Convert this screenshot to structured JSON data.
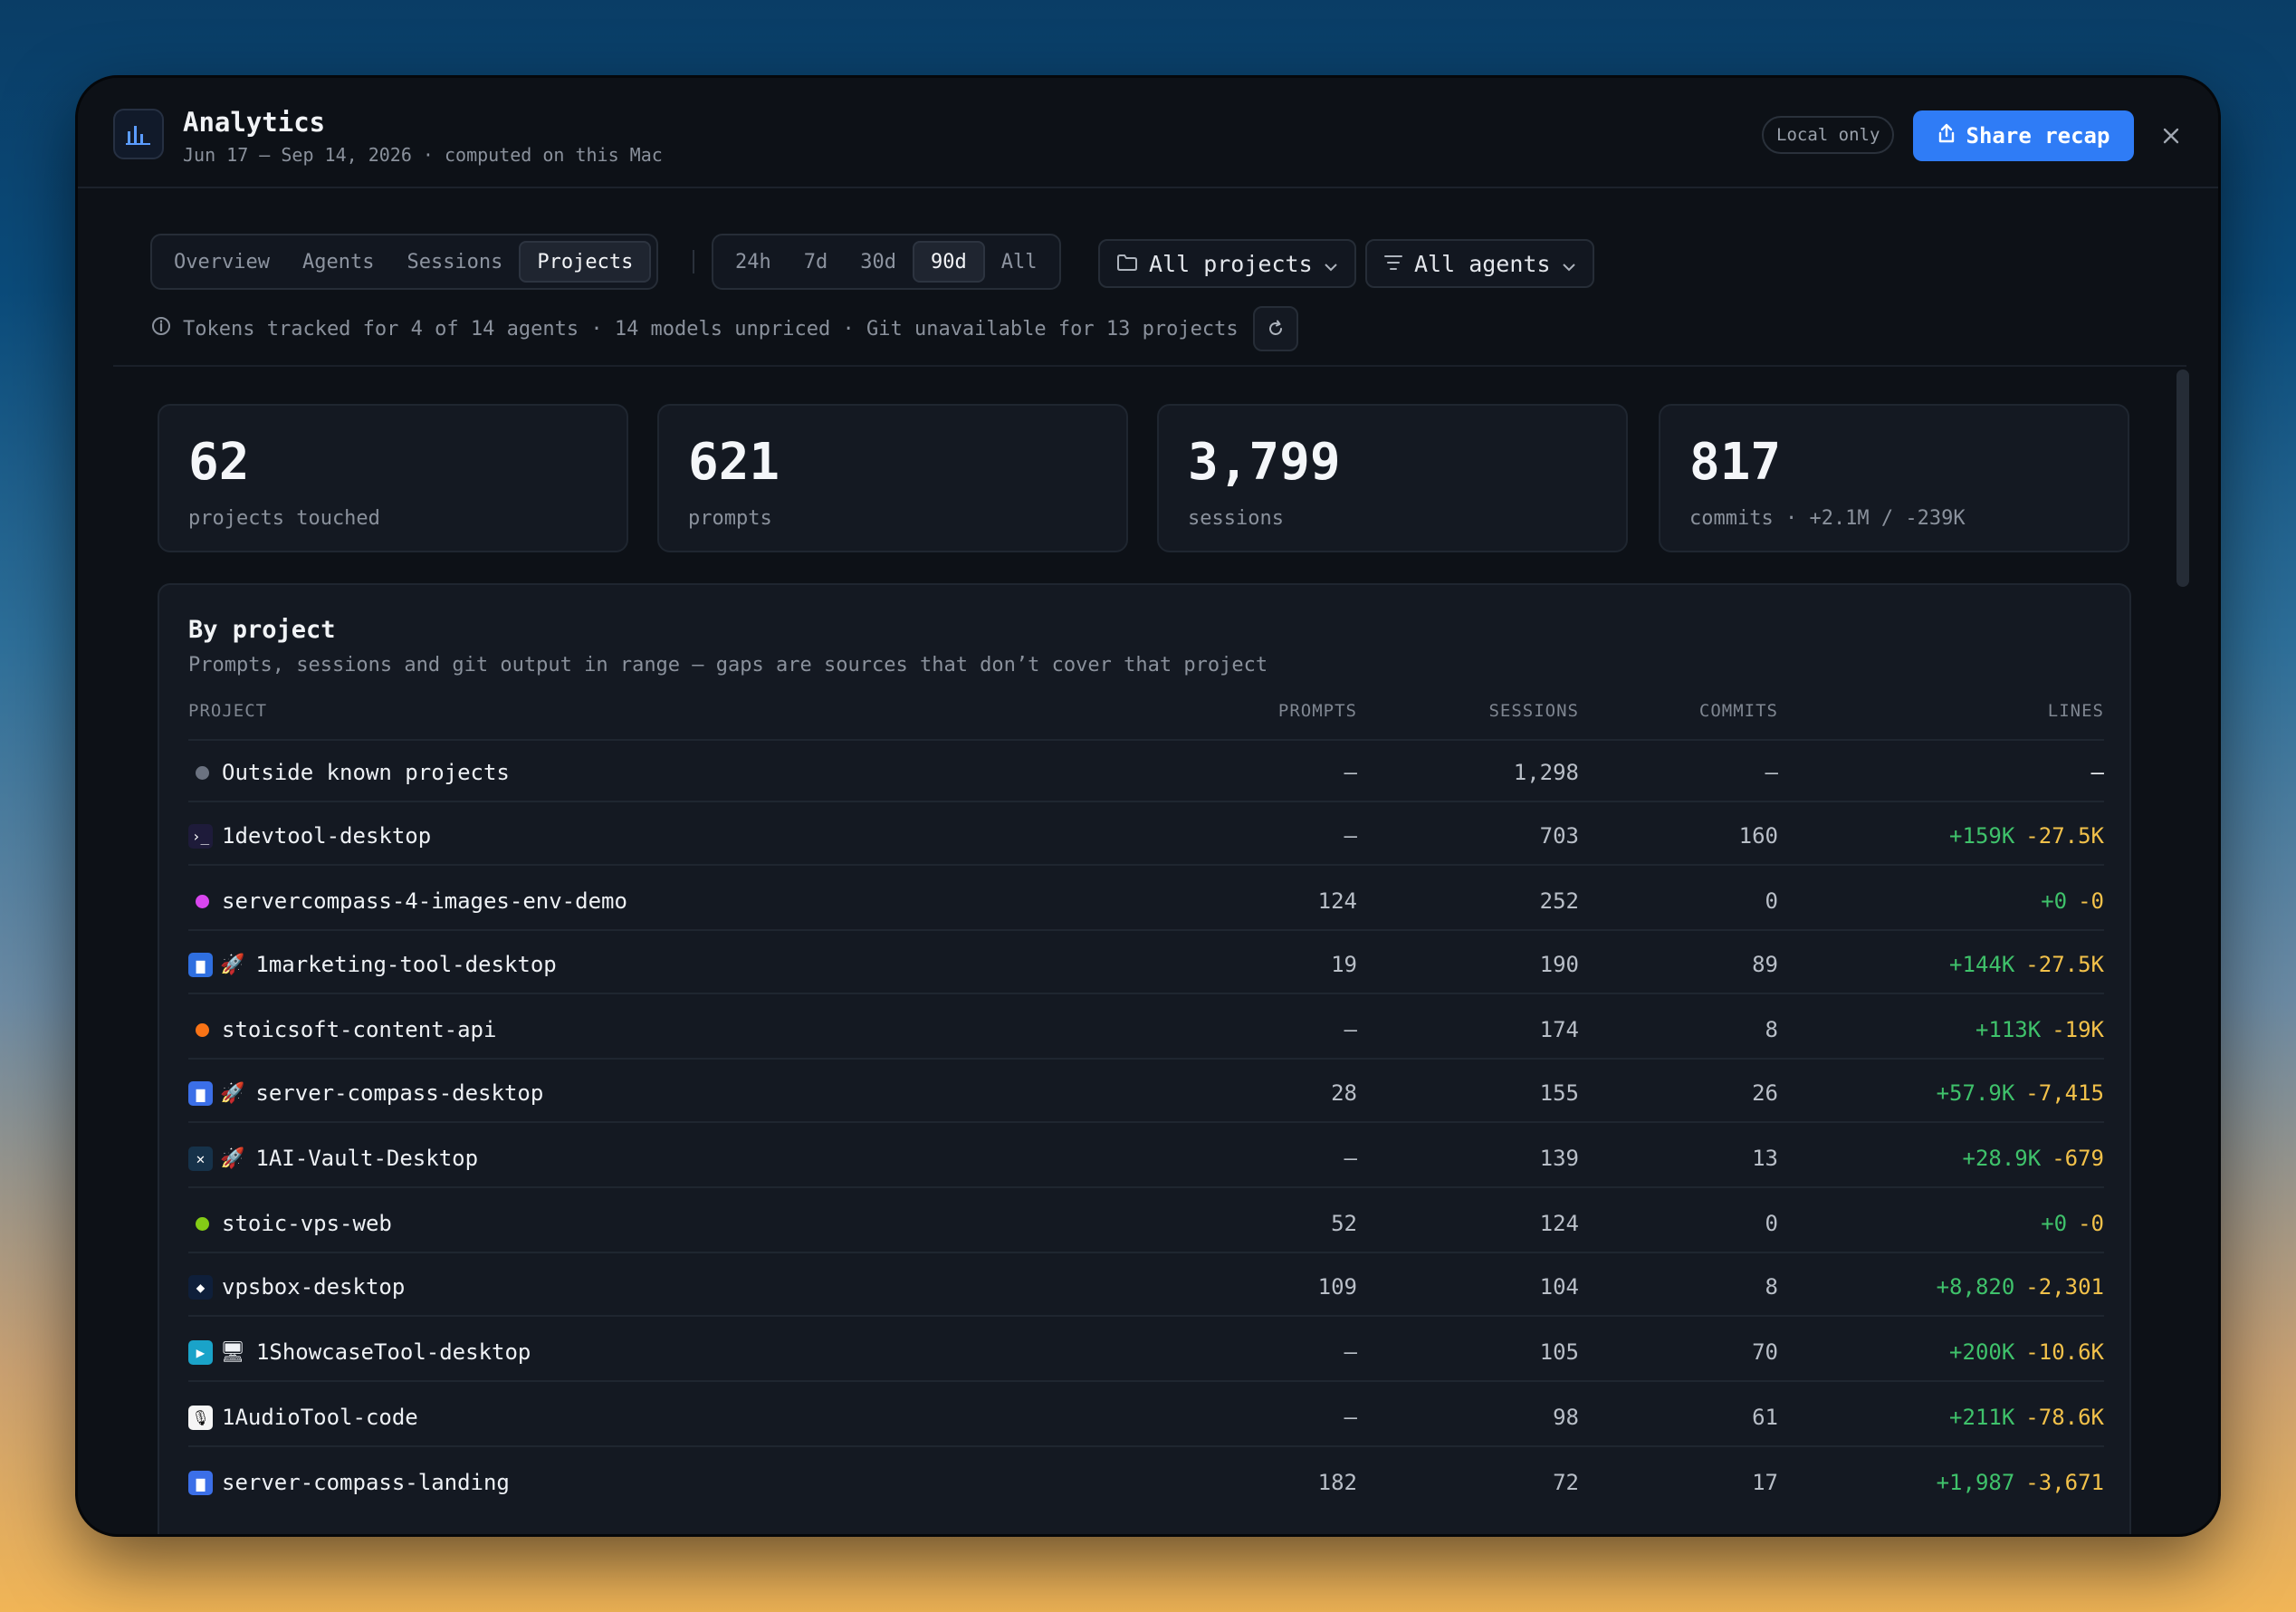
{
  "header": {
    "title": "Analytics",
    "subtitle": "Jun 17 – Sep 14, 2026 · computed on this Mac",
    "local_badge": "Local only",
    "share_label": "Share recap",
    "close_icon": "close-icon",
    "app_icon": "bar-chart-icon"
  },
  "tabs": [
    {
      "label": "Overview",
      "active": false
    },
    {
      "label": "Agents",
      "active": false
    },
    {
      "label": "Sessions",
      "active": false
    },
    {
      "label": "Projects",
      "active": true
    }
  ],
  "ranges": [
    {
      "label": "24h",
      "active": false
    },
    {
      "label": "7d",
      "active": false
    },
    {
      "label": "30d",
      "active": false
    },
    {
      "label": "90d",
      "active": true
    },
    {
      "label": "All",
      "active": false
    }
  ],
  "filters": {
    "projects_label": "All projects",
    "agents_label": "All agents"
  },
  "info": {
    "text": "Tokens tracked for 4 of 14 agents · 14 models unpriced · Git unavailable for 13 projects"
  },
  "stats": [
    {
      "value": "62",
      "label": "projects touched"
    },
    {
      "value": "621",
      "label": "prompts"
    },
    {
      "value": "3,799",
      "label": "sessions"
    },
    {
      "value": "817",
      "label": "commits · +2.1M / -239K"
    }
  ],
  "by_project": {
    "title": "By project",
    "subtitle": "Prompts, sessions and git output in range — gaps are sources that don’t cover that project",
    "columns": {
      "project": "PROJECT",
      "prompts": "PROMPTS",
      "sessions": "SESSIONS",
      "commits": "COMMITS",
      "lines": "LINES"
    },
    "rows": [
      {
        "name": "Outside known projects",
        "icon": "dot",
        "color": "#6b7280",
        "prompts": "—",
        "sessions": "1,298",
        "commits": "—",
        "added": "",
        "removed": "",
        "lines_text": "—"
      },
      {
        "name": "1devtool-desktop",
        "icon": "terminal-icon",
        "color": "#1e1b3a",
        "prompts": "—",
        "sessions": "703",
        "commits": "160",
        "added": "+159K",
        "removed": "-27.5K"
      },
      {
        "name": "servercompass-4-images-env-demo",
        "icon": "dot",
        "color": "#d946ef",
        "prompts": "124",
        "sessions": "252",
        "commits": "0",
        "added": "+0",
        "removed": "-0"
      },
      {
        "name": "1marketing-tool-desktop",
        "icon": "app-icon",
        "color": "#2f6fe0",
        "rocket": true,
        "prompts": "19",
        "sessions": "190",
        "commits": "89",
        "added": "+144K",
        "removed": "-27.5K"
      },
      {
        "name": "stoicsoft-content-api",
        "icon": "dot",
        "color": "#f97316",
        "prompts": "—",
        "sessions": "174",
        "commits": "8",
        "added": "+113K",
        "removed": "-19K"
      },
      {
        "name": "server-compass-desktop",
        "icon": "app-icon",
        "color": "#3b6fe8",
        "rocket": true,
        "prompts": "28",
        "sessions": "155",
        "commits": "26",
        "added": "+57.9K",
        "removed": "-7,415"
      },
      {
        "name": "1AI-Vault-Desktop",
        "icon": "network-icon",
        "color": "#16324a",
        "rocket": true,
        "prompts": "—",
        "sessions": "139",
        "commits": "13",
        "added": "+28.9K",
        "removed": "-679"
      },
      {
        "name": "stoic-vps-web",
        "icon": "dot",
        "color": "#84cc16",
        "prompts": "52",
        "sessions": "124",
        "commits": "0",
        "added": "+0",
        "removed": "-0"
      },
      {
        "name": "vpsbox-desktop",
        "icon": "cube-icon",
        "color": "#0f1f3a",
        "prompts": "109",
        "sessions": "104",
        "commits": "8",
        "added": "+8,820",
        "removed": "-2,301"
      },
      {
        "name": "1ShowcaseTool-desktop",
        "icon": "play-icon",
        "color": "#1aa3c9",
        "monitor": true,
        "prompts": "—",
        "sessions": "105",
        "commits": "70",
        "added": "+200K",
        "removed": "-10.6K"
      },
      {
        "name": "1AudioTool-code",
        "icon": "mic-icon",
        "color": "#f5f5f5",
        "prompts": "—",
        "sessions": "98",
        "commits": "61",
        "added": "+211K",
        "removed": "-78.6K"
      },
      {
        "name": "server-compass-landing",
        "icon": "app-icon",
        "color": "#3b6fe8",
        "prompts": "182",
        "sessions": "72",
        "commits": "17",
        "added": "+1,987",
        "removed": "-3,671"
      }
    ]
  }
}
